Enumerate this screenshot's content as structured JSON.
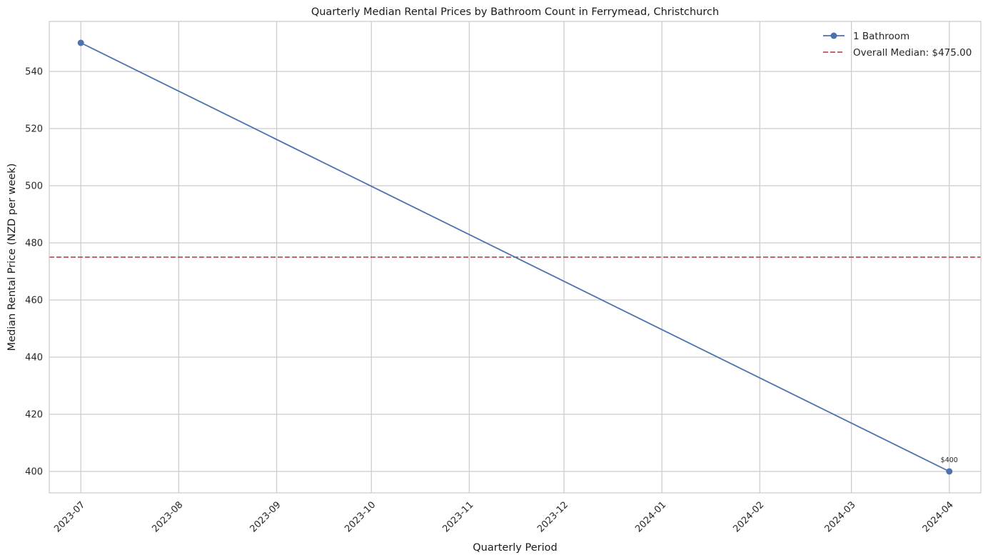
{
  "chart_data": {
    "type": "line",
    "title": "Quarterly Median Rental Prices by Bathroom Count in Ferrymead, Christchurch",
    "xlabel": "Quarterly Period",
    "ylabel": "Median Rental Price (NZD per week)",
    "x_ticks": [
      "2023-07-01",
      "2023-08-01",
      "2023-09-01",
      "2023-10-01",
      "2023-11-01",
      "2023-12-01",
      "2024-01-01",
      "2024-02-01",
      "2024-03-01",
      "2024-04-01"
    ],
    "x_tick_labels": [
      "2023-07",
      "2023-08",
      "2023-09",
      "2023-10",
      "2023-11",
      "2023-12",
      "2024-01",
      "2024-02",
      "2024-03",
      "2024-04"
    ],
    "xlim": [
      "2023-06-21",
      "2024-04-11"
    ],
    "y_ticks": [
      400,
      420,
      440,
      460,
      480,
      500,
      520,
      540
    ],
    "ylim": [
      392.5,
      557.5
    ],
    "grid": true,
    "legend_position": "top-right",
    "series": [
      {
        "name": "1 Bathroom",
        "color": "#4c72b0",
        "marker": "circle",
        "points": [
          {
            "x": "2023-07-01",
            "y": 550,
            "label": ""
          },
          {
            "x": "2024-04-01",
            "y": 400,
            "label": "$400"
          }
        ]
      }
    ],
    "reference_line": {
      "name": "Overall Median: $475.00",
      "y": 475,
      "color": "#c44e52",
      "style": "dashed"
    }
  }
}
